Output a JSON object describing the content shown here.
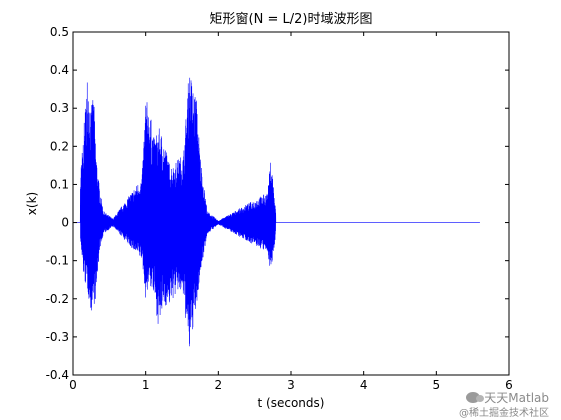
{
  "chart_data": {
    "type": "line",
    "title": "矩形窗(N = L/2)时域波形图",
    "xlabel": "t (seconds)",
    "ylabel": "x(k)",
    "xlim": [
      0,
      6
    ],
    "ylim": [
      -0.4,
      0.5
    ],
    "xticks": [
      "0",
      "1",
      "2",
      "3",
      "4",
      "5",
      "6"
    ],
    "yticks": [
      "-0.4",
      "-0.3",
      "-0.2",
      "-0.1",
      "0",
      "0.1",
      "0.2",
      "0.3",
      "0.4",
      "0.5"
    ],
    "grid": false,
    "series": [
      {
        "color": "#0000ff",
        "x_range": [
          0,
          5.6
        ],
        "envelope": [
          {
            "t": 0.1,
            "max": 0.12,
            "min": -0.05
          },
          {
            "t": 0.15,
            "max": 0.25,
            "min": -0.15
          },
          {
            "t": 0.2,
            "max": 0.4,
            "min": -0.18
          },
          {
            "t": 0.25,
            "max": 0.3,
            "min": -0.24
          },
          {
            "t": 0.28,
            "max": 0.35,
            "min": -0.22
          },
          {
            "t": 0.32,
            "max": 0.18,
            "min": -0.2
          },
          {
            "t": 0.36,
            "max": 0.1,
            "min": -0.08
          },
          {
            "t": 0.42,
            "max": 0.03,
            "min": -0.03
          },
          {
            "t": 0.55,
            "max": 0.01,
            "min": -0.01
          },
          {
            "t": 0.95,
            "max": 0.12,
            "min": -0.1
          },
          {
            "t": 1.0,
            "max": 0.33,
            "min": -0.2
          },
          {
            "t": 1.05,
            "max": 0.3,
            "min": -0.16
          },
          {
            "t": 1.12,
            "max": 0.22,
            "min": -0.2
          },
          {
            "t": 1.18,
            "max": 0.25,
            "min": -0.28
          },
          {
            "t": 1.25,
            "max": 0.22,
            "min": -0.22
          },
          {
            "t": 1.32,
            "max": 0.16,
            "min": -0.22
          },
          {
            "t": 1.38,
            "max": 0.15,
            "min": -0.2
          },
          {
            "t": 1.45,
            "max": 0.17,
            "min": -0.18
          },
          {
            "t": 1.52,
            "max": 0.18,
            "min": -0.2
          },
          {
            "t": 1.6,
            "max": 0.41,
            "min": -0.35
          },
          {
            "t": 1.65,
            "max": 0.36,
            "min": -0.28
          },
          {
            "t": 1.7,
            "max": 0.33,
            "min": -0.23
          },
          {
            "t": 1.75,
            "max": 0.18,
            "min": -0.14
          },
          {
            "t": 1.8,
            "max": 0.1,
            "min": -0.08
          },
          {
            "t": 1.85,
            "max": 0.03,
            "min": -0.03
          },
          {
            "t": 2.0,
            "max": 0.005,
            "min": -0.005
          },
          {
            "t": 2.68,
            "max": 0.08,
            "min": -0.08
          },
          {
            "t": 2.72,
            "max": 0.17,
            "min": -0.13
          },
          {
            "t": 2.75,
            "max": 0.12,
            "min": -0.1
          },
          {
            "t": 2.79,
            "max": 0.03,
            "min": -0.03
          }
        ]
      }
    ]
  },
  "watermark": {
    "main": "天天Matlab",
    "sub": "@稀土掘金技术社区"
  }
}
